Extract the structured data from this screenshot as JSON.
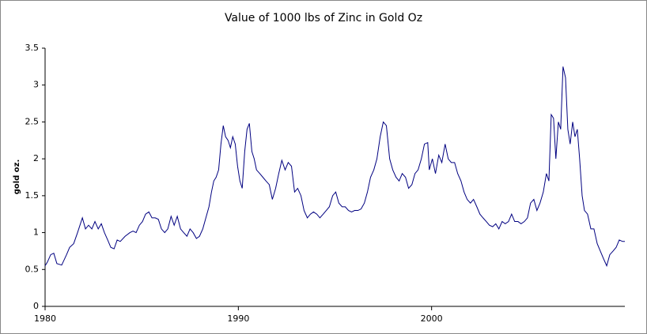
{
  "chart_data": {
    "type": "line",
    "title": "Value of 1000 lbs of Zinc in Gold Oz",
    "y_label": "gold oz.",
    "x": [
      1980,
      1980.12,
      1980.29,
      1980.45,
      1980.61,
      1980.86,
      1981.11,
      1981.27,
      1981.48,
      1981.68,
      1981.93,
      1982.09,
      1982.25,
      1982.42,
      1982.58,
      1982.75,
      1982.91,
      1983.07,
      1983.24,
      1983.4,
      1983.57,
      1983.73,
      1983.89,
      1984.14,
      1984.39,
      1984.55,
      1984.71,
      1984.88,
      1985.04,
      1985.2,
      1985.37,
      1985.53,
      1985.7,
      1985.86,
      1986.02,
      1986.19,
      1986.35,
      1986.52,
      1986.68,
      1986.84,
      1987.01,
      1987.17,
      1987.34,
      1987.5,
      1987.66,
      1987.83,
      1987.99,
      1988.16,
      1988.32,
      1988.48,
      1988.61,
      1988.73,
      1988.85,
      1988.98,
      1989.1,
      1989.22,
      1989.34,
      1989.47,
      1989.59,
      1989.71,
      1989.84,
      1989.96,
      1990.08,
      1990.2,
      1990.33,
      1990.45,
      1990.57,
      1990.7,
      1990.82,
      1990.94,
      1991.11,
      1991.27,
      1991.43,
      1991.6,
      1991.76,
      1991.93,
      1992.09,
      1992.25,
      1992.42,
      1992.58,
      1992.75,
      1992.91,
      1993.07,
      1993.24,
      1993.4,
      1993.57,
      1993.73,
      1993.89,
      1994.06,
      1994.22,
      1994.39,
      1994.55,
      1994.71,
      1994.88,
      1995.04,
      1995.2,
      1995.37,
      1995.53,
      1995.7,
      1995.86,
      1996.02,
      1996.19,
      1996.35,
      1996.52,
      1996.68,
      1996.84,
      1997.01,
      1997.17,
      1997.34,
      1997.5,
      1997.66,
      1997.83,
      1997.99,
      1998.16,
      1998.32,
      1998.48,
      1998.65,
      1998.81,
      1998.98,
      1999.14,
      1999.3,
      1999.47,
      1999.63,
      1999.8,
      1999.88,
      2000.04,
      2000.2,
      2000.37,
      2000.53,
      2000.7,
      2000.86,
      2001.02,
      2001.19,
      2001.35,
      2001.52,
      2001.68,
      2001.84,
      2002.01,
      2002.17,
      2002.34,
      2002.5,
      2002.66,
      2002.83,
      2002.99,
      2003.16,
      2003.32,
      2003.48,
      2003.65,
      2003.81,
      2003.98,
      2004.14,
      2004.3,
      2004.47,
      2004.63,
      2004.8,
      2004.96,
      2005.12,
      2005.29,
      2005.45,
      2005.61,
      2005.78,
      2005.94,
      2006.07,
      2006.19,
      2006.31,
      2006.43,
      2006.56,
      2006.68,
      2006.8,
      2006.93,
      2007.05,
      2007.17,
      2007.3,
      2007.42,
      2007.54,
      2007.66,
      2007.79,
      2007.91,
      2008.07,
      2008.24,
      2008.4,
      2008.57,
      2008.73,
      2008.89,
      2009.06,
      2009.22,
      2009.39,
      2009.55,
      2009.71,
      2009.88,
      2010
    ],
    "series": [
      {
        "color": "#000080",
        "values": [
          0.55,
          0.6,
          0.7,
          0.72,
          0.58,
          0.56,
          0.7,
          0.8,
          0.85,
          1.0,
          1.2,
          1.05,
          1.1,
          1.05,
          1.15,
          1.05,
          1.12,
          1.0,
          0.9,
          0.8,
          0.78,
          0.9,
          0.88,
          0.95,
          1.0,
          1.02,
          1.0,
          1.1,
          1.15,
          1.25,
          1.28,
          1.2,
          1.2,
          1.18,
          1.05,
          1.0,
          1.05,
          1.22,
          1.1,
          1.22,
          1.05,
          1.0,
          0.95,
          1.05,
          1.0,
          0.92,
          0.95,
          1.05,
          1.2,
          1.35,
          1.55,
          1.7,
          1.75,
          1.85,
          2.2,
          2.45,
          2.3,
          2.25,
          2.15,
          2.3,
          2.2,
          1.9,
          1.7,
          1.6,
          2.1,
          2.4,
          2.48,
          2.1,
          2.0,
          1.85,
          1.8,
          1.75,
          1.7,
          1.65,
          1.45,
          1.6,
          1.8,
          1.98,
          1.85,
          1.95,
          1.9,
          1.55,
          1.6,
          1.5,
          1.3,
          1.2,
          1.25,
          1.28,
          1.25,
          1.2,
          1.25,
          1.3,
          1.35,
          1.5,
          1.55,
          1.4,
          1.35,
          1.35,
          1.3,
          1.28,
          1.3,
          1.3,
          1.32,
          1.4,
          1.55,
          1.75,
          1.85,
          2.0,
          2.3,
          2.5,
          2.45,
          2.0,
          1.85,
          1.75,
          1.7,
          1.8,
          1.75,
          1.6,
          1.65,
          1.8,
          1.85,
          2.0,
          2.2,
          2.22,
          1.85,
          2.0,
          1.8,
          2.05,
          1.95,
          2.2,
          2.0,
          1.95,
          1.95,
          1.8,
          1.7,
          1.55,
          1.45,
          1.4,
          1.45,
          1.35,
          1.25,
          1.2,
          1.15,
          1.1,
          1.08,
          1.12,
          1.05,
          1.15,
          1.12,
          1.15,
          1.25,
          1.15,
          1.15,
          1.12,
          1.15,
          1.2,
          1.4,
          1.45,
          1.3,
          1.4,
          1.55,
          1.8,
          1.7,
          2.6,
          2.55,
          2.0,
          2.5,
          2.4,
          3.25,
          3.1,
          2.4,
          2.2,
          2.5,
          2.3,
          2.4,
          2.0,
          1.5,
          1.3,
          1.25,
          1.05,
          1.05,
          0.85,
          0.75,
          0.65,
          0.55,
          0.7,
          0.75,
          0.8,
          0.9,
          0.88,
          0.88
        ]
      }
    ],
    "xlim": [
      1980,
      2010
    ],
    "xticks": [
      1980,
      1990,
      2000
    ],
    "ylim": [
      0,
      3.5
    ],
    "yticks": [
      0,
      0.5,
      1,
      1.5,
      2,
      2.5,
      3,
      3.5
    ],
    "grid": false
  }
}
